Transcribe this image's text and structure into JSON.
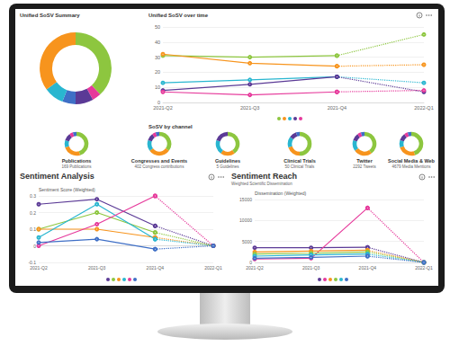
{
  "section_title": "SoSV by channel",
  "chart_data": [
    {
      "type": "pie",
      "title": "Unified SoSV Summary",
      "data_labels": false,
      "values": [
        38,
        4,
        8,
        6,
        9,
        35
      ],
      "colors": [
        "#8dc63f",
        "#e6399b",
        "#5b3a96",
        "#3f6fc6",
        "#29b6d0",
        "#f7941d"
      ]
    },
    {
      "type": "line",
      "title": "Unified SoSV over time",
      "grid": true,
      "categories": [
        "2021-Q2",
        "2021-Q3",
        "2021-Q4",
        "2022-Q1"
      ],
      "ylim": [
        0,
        50
      ],
      "yticks": [
        0,
        10,
        20,
        30,
        40,
        50
      ],
      "series": [
        {
          "color": "#8dc63f",
          "values": [
            31,
            30,
            31,
            45
          ],
          "marker": "circle",
          "line_style": "dotted_forecast"
        },
        {
          "color": "#f7941d",
          "values": [
            32,
            26,
            24,
            25
          ],
          "marker": "circle",
          "line_style": "dotted_forecast"
        },
        {
          "color": "#29b6d0",
          "values": [
            13,
            15,
            17,
            13
          ],
          "marker": "circle",
          "line_style": "dotted_forecast"
        },
        {
          "color": "#5b3a96",
          "values": [
            8,
            12,
            17,
            7
          ],
          "marker": "circle",
          "line_style": "dotted_forecast"
        },
        {
          "color": "#e6399b",
          "values": [
            7,
            5,
            7,
            8
          ],
          "marker": "circle",
          "line_style": "dotted_forecast"
        }
      ]
    },
    {
      "type": "pie",
      "title": "Publications",
      "subtitle": "169 Publications",
      "data_labels": false,
      "values": [
        45,
        25,
        10,
        10,
        5,
        5
      ],
      "colors": [
        "#8dc63f",
        "#f7941d",
        "#29b6d0",
        "#5b3a96",
        "#e6399b",
        "#3f6fc6"
      ]
    },
    {
      "type": "pie",
      "title": "Congresses and Events",
      "subtitle": "402 Congress contributions",
      "data_labels": false,
      "values": [
        35,
        30,
        15,
        10,
        5,
        5
      ],
      "colors": [
        "#8dc63f",
        "#f7941d",
        "#29b6d0",
        "#5b3a96",
        "#e6399b",
        "#3f6fc6"
      ]
    },
    {
      "type": "pie",
      "title": "Guidelines",
      "subtitle": "5 Guidelines",
      "data_labels": false,
      "values": [
        40,
        20,
        20,
        20
      ],
      "colors": [
        "#8dc63f",
        "#f7941d",
        "#29b6d0",
        "#5b3a96"
      ]
    },
    {
      "type": "pie",
      "title": "Clinical Trials",
      "subtitle": "50 Clinical Trials",
      "data_labels": false,
      "values": [
        50,
        20,
        15,
        10,
        5
      ],
      "colors": [
        "#8dc63f",
        "#f7941d",
        "#29b6d0",
        "#5b3a96",
        "#3f6fc6"
      ]
    },
    {
      "type": "pie",
      "title": "Twitter",
      "subtitle": "2292 Tweets",
      "data_labels": false,
      "values": [
        40,
        25,
        15,
        10,
        5,
        5
      ],
      "colors": [
        "#8dc63f",
        "#f7941d",
        "#29b6d0",
        "#5b3a96",
        "#e6399b",
        "#3f6fc6"
      ]
    },
    {
      "type": "pie",
      "title": "Social Media & Web",
      "subtitle": "4679 Media Mentions",
      "data_labels": false,
      "values": [
        45,
        25,
        10,
        10,
        5,
        5
      ],
      "colors": [
        "#8dc63f",
        "#f7941d",
        "#29b6d0",
        "#5b3a96",
        "#e6399b",
        "#3f6fc6"
      ]
    },
    {
      "type": "line",
      "title": "Sentiment Analysis",
      "y_label": "Sentiment Score (Weighted)",
      "grid": true,
      "categories": [
        "2021-Q2",
        "2021-Q3",
        "2021-Q4",
        "2022-Q1"
      ],
      "ylim": [
        -0.1,
        0.3
      ],
      "yticks": [
        -0.1,
        0,
        0.1,
        0.2,
        0.3
      ],
      "series": [
        {
          "color": "#5b3a96",
          "values": [
            0.25,
            0.28,
            0.12,
            0
          ],
          "marker": "circle",
          "line_style": "dotted_forecast"
        },
        {
          "color": "#8dc63f",
          "values": [
            0.1,
            0.2,
            0.08,
            0
          ],
          "marker": "circle",
          "line_style": "dotted_forecast"
        },
        {
          "color": "#f7941d",
          "values": [
            0.1,
            0.1,
            0.05,
            0
          ],
          "marker": "circle",
          "line_style": "dotted_forecast"
        },
        {
          "color": "#29b6d0",
          "values": [
            0.05,
            0.25,
            0.04,
            0
          ],
          "marker": "circle",
          "line_style": "dotted_forecast"
        },
        {
          "color": "#e6399b",
          "values": [
            0,
            0.13,
            0.3,
            0
          ],
          "marker": "circle",
          "line_style": "dotted_forecast"
        },
        {
          "color": "#3f6fc6",
          "values": [
            0.02,
            0.04,
            -0.02,
            0
          ],
          "marker": "circle",
          "line_style": "dotted_forecast"
        }
      ]
    },
    {
      "type": "line",
      "title": "Sentiment Reach",
      "subtitle": "Weighted Scientific Dissemination",
      "y_label": "Dissemination (Weighted)",
      "grid": true,
      "categories": [
        "2021-Q2",
        "2021-Q3",
        "2021-Q4",
        "2022-Q1"
      ],
      "ylim": [
        0,
        15000
      ],
      "yticks": [
        0,
        5000,
        10000,
        15000
      ],
      "series": [
        {
          "color": "#5b3a96",
          "values": [
            3500,
            3500,
            3600,
            0
          ],
          "marker": "circle",
          "line_style": "dotted_forecast"
        },
        {
          "color": "#e6399b",
          "values": [
            800,
            1000,
            13000,
            0
          ],
          "marker": "circle",
          "line_style": "dotted_forecast"
        },
        {
          "color": "#f7941d",
          "values": [
            2500,
            2700,
            2900,
            0
          ],
          "marker": "circle",
          "line_style": "dotted_forecast"
        },
        {
          "color": "#8dc63f",
          "values": [
            2000,
            2200,
            2500,
            0
          ],
          "marker": "circle",
          "line_style": "dotted_forecast"
        },
        {
          "color": "#29b6d0",
          "values": [
            1500,
            1800,
            2000,
            0
          ],
          "marker": "circle",
          "line_style": "dotted_forecast"
        },
        {
          "color": "#3f6fc6",
          "values": [
            1000,
            1200,
            1500,
            0
          ],
          "marker": "circle",
          "line_style": "dotted_forecast"
        }
      ]
    }
  ]
}
